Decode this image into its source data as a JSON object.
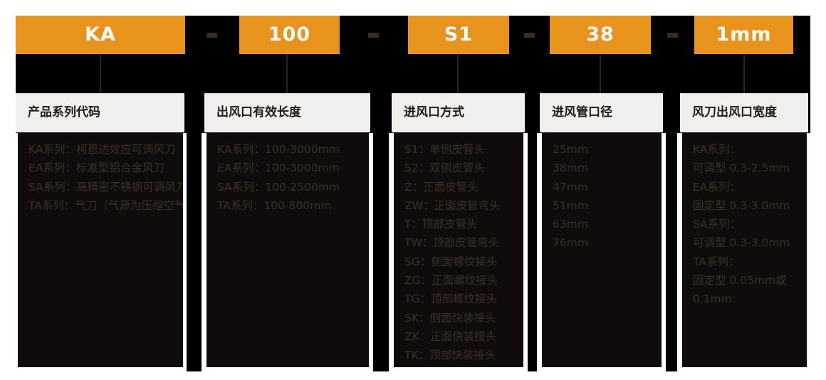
{
  "model_code": {
    "separator": "-",
    "segments": [
      "KA",
      "100",
      "S1",
      "38",
      "1mm"
    ]
  },
  "columns": [
    {
      "header": "产品系列代码",
      "lines": [
        "KA系列：柯恩达效应可调风刀",
        "EA系列：标准型铝合金风刀",
        "SA系列：高精密不锈钢可调风刀",
        "TA系列：气刀（气源为压缩空气）"
      ]
    },
    {
      "header": "出风口有效长度",
      "lines": [
        "KA系列：100-3000mm",
        "EA系列：100-3000mm",
        "SA系列：100-2500mm",
        "TA系列：100-800mm"
      ]
    },
    {
      "header": "进风口方式",
      "lines": [
        "S1：单侧皮管头",
        "S2：双侧皮管头",
        "Z：正面皮管头",
        "ZW：正面皮管弯头",
        "T：顶部皮管头",
        "TW：顶部皮管弯头",
        "SG：侧面螺纹接头",
        "ZG：正面螺纹接头",
        "TG：顶部螺纹接头",
        "SK：侧面快装接头",
        "ZK：正面快装接头",
        "TK：顶部快装接头"
      ]
    },
    {
      "header": "进风管口径",
      "lines": [
        "25mm",
        "38mm",
        "47mm",
        "51mm",
        "63mm",
        "76mm"
      ]
    },
    {
      "header": "风刀出风口宽度",
      "lines": [
        "KA系列：",
        "可调型 0.3-2.5mm",
        "EA系列：",
        "固定型 0.3-3.0mm",
        "SA系列：",
        "可调型 0.3-3.0mm",
        "TA系列：",
        "固定型 0.05mm或",
        "0.1mm"
      ]
    }
  ],
  "colors": {
    "accent_orange": "#E8941C",
    "panel_black": "#000000",
    "content_bg": "#0F0C0B",
    "content_text": "#3C2F27",
    "header_bg": "#F0EFED",
    "header_text": "#221B15",
    "connector_line": "#2F241C",
    "dash": "#382B20",
    "code_text": "#FFFFFF"
  }
}
